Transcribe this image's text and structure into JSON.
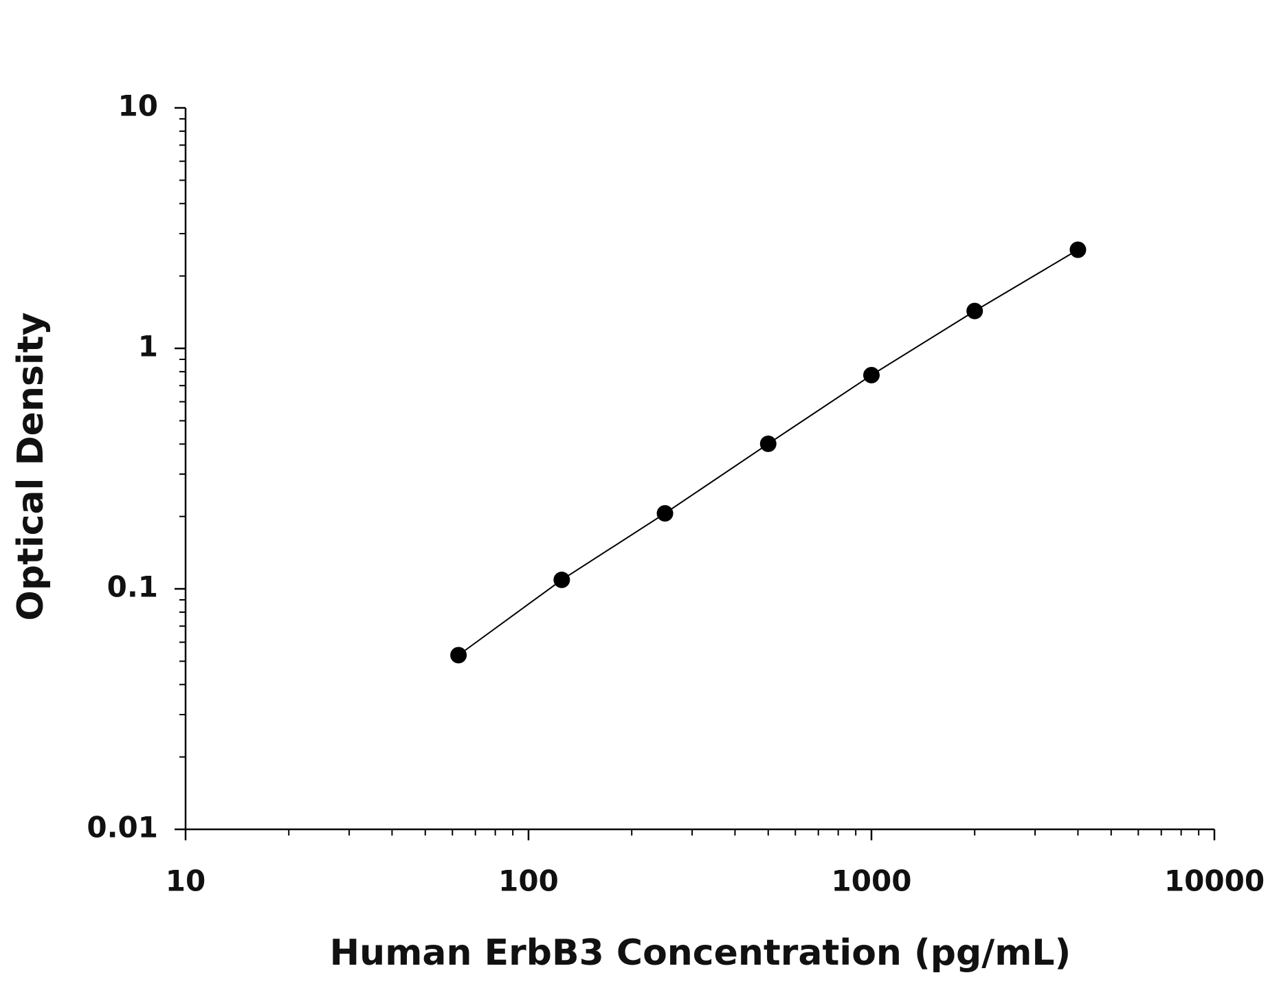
{
  "chart_data": {
    "type": "line",
    "x_label": "Human ErbB3 Concentration (pg/mL)",
    "y_label": "Optical Density",
    "x": [
      62.5,
      125,
      250,
      500,
      1000,
      2000,
      4000
    ],
    "series": [
      {
        "color": "#000000",
        "values": [
          0.053,
          0.109,
          0.206,
          0.401,
          0.774,
          1.43,
          2.57
        ]
      }
    ],
    "x_log": true,
    "y_log": true,
    "xlim": [
      10,
      10000
    ],
    "xticks": [
      10,
      100,
      1000,
      10000
    ],
    "ylim": [
      0.01,
      10
    ],
    "yticks": [
      0.01,
      0.1,
      1,
      10
    ],
    "markers": true
  }
}
